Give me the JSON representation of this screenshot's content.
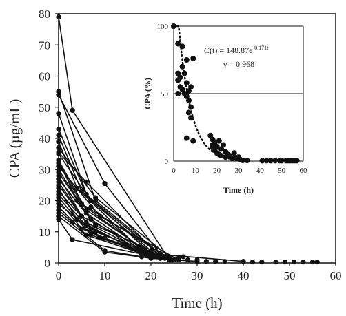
{
  "chart_data": [
    {
      "type": "line",
      "xlabel": "Time (h)",
      "ylabel": "CPA (µg/mL)",
      "xlim": [
        0,
        60
      ],
      "ylim": [
        0,
        80
      ],
      "xticks": [
        "0",
        "10",
        "20",
        "30",
        "40",
        "50",
        "60"
      ],
      "yticks": [
        "0",
        "10",
        "20",
        "30",
        "40",
        "50",
        "60",
        "70",
        "80"
      ],
      "grid": false,
      "series": [
        {
          "x": [
            0,
            3,
            24
          ],
          "y": [
            79,
            49,
            1
          ]
        },
        {
          "x": [
            0,
            10,
            22
          ],
          "y": [
            54,
            25.5,
            3
          ]
        },
        {
          "x": [
            0,
            8,
            22
          ],
          "y": [
            55,
            20,
            3
          ]
        },
        {
          "x": [
            0,
            7,
            20
          ],
          "y": [
            48,
            18,
            2
          ]
        },
        {
          "x": [
            0,
            6,
            20,
            40
          ],
          "y": [
            43,
            22,
            3,
            0.5
          ]
        },
        {
          "x": [
            0,
            5,
            22
          ],
          "y": [
            41,
            23,
            2.5
          ]
        },
        {
          "x": [
            0,
            4,
            18
          ],
          "y": [
            39,
            24,
            4
          ]
        },
        {
          "x": [
            0,
            8,
            24
          ],
          "y": [
            37,
            21,
            2
          ]
        },
        {
          "x": [
            0,
            7,
            22
          ],
          "y": [
            35,
            20,
            1.5
          ]
        },
        {
          "x": [
            0,
            6,
            20
          ],
          "y": [
            33,
            17,
            3
          ]
        },
        {
          "x": [
            0,
            5,
            24
          ],
          "y": [
            32,
            19,
            1.5
          ]
        },
        {
          "x": [
            0,
            9,
            26
          ],
          "y": [
            31,
            15,
            1
          ]
        },
        {
          "x": [
            0,
            6,
            20
          ],
          "y": [
            30,
            16,
            2
          ]
        },
        {
          "x": [
            0,
            7,
            18
          ],
          "y": [
            29,
            14,
            3.5
          ]
        },
        {
          "x": [
            0,
            5,
            22
          ],
          "y": [
            28,
            15,
            2
          ]
        },
        {
          "x": [
            0,
            8,
            24
          ],
          "y": [
            27,
            12,
            1.5
          ]
        },
        {
          "x": [
            0,
            6,
            20
          ],
          "y": [
            26,
            13,
            2.5
          ]
        },
        {
          "x": [
            0,
            7,
            22
          ],
          "y": [
            25,
            11,
            1.5
          ]
        },
        {
          "x": [
            0,
            4,
            18
          ],
          "y": [
            24,
            14,
            3
          ]
        },
        {
          "x": [
            0,
            8,
            24
          ],
          "y": [
            23,
            10,
            1
          ]
        },
        {
          "x": [
            0,
            6,
            20
          ],
          "y": [
            22,
            12,
            2
          ]
        },
        {
          "x": [
            0,
            7,
            22
          ],
          "y": [
            21,
            9,
            1.5
          ]
        },
        {
          "x": [
            0,
            5,
            18
          ],
          "y": [
            20,
            11,
            3
          ]
        },
        {
          "x": [
            0,
            9,
            24
          ],
          "y": [
            19,
            8,
            1
          ]
        },
        {
          "x": [
            0,
            6,
            20
          ],
          "y": [
            18,
            9,
            2
          ]
        },
        {
          "x": [
            0,
            3,
            10,
            22
          ],
          "y": [
            17,
            13,
            8,
            1.5
          ]
        },
        {
          "x": [
            0,
            10,
            18
          ],
          "y": [
            16,
            4,
            2
          ]
        },
        {
          "x": [
            0,
            3,
            24
          ],
          "y": [
            14,
            7.5,
            1
          ]
        },
        {
          "x": [
            0,
            10,
            20,
            30
          ],
          "y": [
            15,
            3.5,
            1.5,
            0.5
          ]
        },
        {
          "x": [
            0,
            6,
            22
          ],
          "y": [
            35.5,
            26,
            2
          ]
        },
        {
          "x": [
            0,
            4,
            20
          ],
          "y": [
            33,
            20,
            2.5
          ]
        }
      ],
      "scatter_points": [
        {
          "x": 0,
          "y": 79
        },
        {
          "x": 3,
          "y": 49
        },
        {
          "x": 10,
          "y": 25.5
        },
        {
          "x": 0,
          "y": 55
        },
        {
          "x": 0,
          "y": 54
        },
        {
          "x": 0,
          "y": 48
        },
        {
          "x": 0,
          "y": 43
        },
        {
          "x": 0,
          "y": 41
        },
        {
          "x": 0,
          "y": 39
        },
        {
          "x": 0,
          "y": 37
        },
        {
          "x": 0,
          "y": 35
        },
        {
          "x": 0,
          "y": 33
        },
        {
          "x": 0,
          "y": 31
        },
        {
          "x": 0,
          "y": 29
        },
        {
          "x": 0,
          "y": 27
        },
        {
          "x": 0,
          "y": 25
        },
        {
          "x": 0,
          "y": 23
        },
        {
          "x": 0,
          "y": 21
        },
        {
          "x": 0,
          "y": 19
        },
        {
          "x": 0,
          "y": 17
        },
        {
          "x": 0,
          "y": 16
        },
        {
          "x": 0,
          "y": 15
        },
        {
          "x": 0,
          "y": 14
        },
        {
          "x": 3,
          "y": 7.5
        },
        {
          "x": 10,
          "y": 3.5
        },
        {
          "x": 18,
          "y": 3
        },
        {
          "x": 19,
          "y": 2.5
        },
        {
          "x": 20,
          "y": 4
        },
        {
          "x": 21,
          "y": 2
        },
        {
          "x": 22,
          "y": 3
        },
        {
          "x": 23,
          "y": 1.5
        },
        {
          "x": 24,
          "y": 2
        },
        {
          "x": 25,
          "y": 1
        },
        {
          "x": 26,
          "y": 1.5
        },
        {
          "x": 27,
          "y": 2
        },
        {
          "x": 28,
          "y": 1
        },
        {
          "x": 30,
          "y": 1
        },
        {
          "x": 32,
          "y": 0.5
        },
        {
          "x": 34,
          "y": 0.5
        },
        {
          "x": 36,
          "y": 0.5
        },
        {
          "x": 40,
          "y": 0.5
        },
        {
          "x": 42,
          "y": 0.3
        },
        {
          "x": 44,
          "y": 0.3
        },
        {
          "x": 47,
          "y": 0.3
        },
        {
          "x": 49,
          "y": 0.3
        },
        {
          "x": 51,
          "y": 0.3
        },
        {
          "x": 53,
          "y": 0.3
        },
        {
          "x": 55,
          "y": 0.3
        },
        {
          "x": 56,
          "y": 0.3
        }
      ]
    },
    {
      "type": "scatter",
      "xlabel": "Time (h)",
      "ylabel": "CPA (%)",
      "xlim": [
        0,
        60
      ],
      "ylim": [
        0,
        100
      ],
      "xticks": [
        "0",
        "10",
        "20",
        "30",
        "40",
        "50",
        "60"
      ],
      "yticks": [
        "0",
        "50",
        "100"
      ],
      "reference_line_y": 50,
      "annotations": [
        "C(t) = 148.87e",
        "-0.171t",
        "γ = 0.968"
      ],
      "fit": {
        "a": 148.87,
        "k": -0.171,
        "x_range": [
          0,
          32
        ]
      },
      "points": [
        {
          "x": 0,
          "y": 100
        },
        {
          "x": 2,
          "y": 87
        },
        {
          "x": 2,
          "y": 65
        },
        {
          "x": 2,
          "y": 60
        },
        {
          "x": 2,
          "y": 50
        },
        {
          "x": 3,
          "y": 62
        },
        {
          "x": 3,
          "y": 55
        },
        {
          "x": 4,
          "y": 85
        },
        {
          "x": 4,
          "y": 70
        },
        {
          "x": 4,
          "y": 53
        },
        {
          "x": 5,
          "y": 65
        },
        {
          "x": 5,
          "y": 50
        },
        {
          "x": 6,
          "y": 75
        },
        {
          "x": 6,
          "y": 58
        },
        {
          "x": 6,
          "y": 48
        },
        {
          "x": 6,
          "y": 17
        },
        {
          "x": 7,
          "y": 52
        },
        {
          "x": 7,
          "y": 45
        },
        {
          "x": 7,
          "y": 36
        },
        {
          "x": 8,
          "y": 55
        },
        {
          "x": 8,
          "y": 40
        },
        {
          "x": 8,
          "y": 32
        },
        {
          "x": 9,
          "y": 76
        },
        {
          "x": 9,
          "y": 15
        },
        {
          "x": 17,
          "y": 19
        },
        {
          "x": 18,
          "y": 16
        },
        {
          "x": 18,
          "y": 12
        },
        {
          "x": 18,
          "y": 10
        },
        {
          "x": 19,
          "y": 14
        },
        {
          "x": 19,
          "y": 8
        },
        {
          "x": 20,
          "y": 6
        },
        {
          "x": 20,
          "y": 11
        },
        {
          "x": 21,
          "y": 15
        },
        {
          "x": 21,
          "y": 5
        },
        {
          "x": 22,
          "y": 9
        },
        {
          "x": 22,
          "y": 4
        },
        {
          "x": 23,
          "y": 12
        },
        {
          "x": 24,
          "y": 7
        },
        {
          "x": 24,
          "y": 3
        },
        {
          "x": 25,
          "y": 5
        },
        {
          "x": 26,
          "y": 4
        },
        {
          "x": 27,
          "y": 2
        },
        {
          "x": 28,
          "y": 6
        },
        {
          "x": 29,
          "y": 2
        },
        {
          "x": 30,
          "y": 3
        },
        {
          "x": 31,
          "y": 1
        },
        {
          "x": 32,
          "y": 0.5
        },
        {
          "x": 34,
          "y": 0.5
        },
        {
          "x": 41,
          "y": 0.3
        },
        {
          "x": 43,
          "y": 0.3
        },
        {
          "x": 45,
          "y": 0.3
        },
        {
          "x": 47,
          "y": 0.3
        },
        {
          "x": 49,
          "y": 0.3
        },
        {
          "x": 50,
          "y": 0.3
        },
        {
          "x": 52,
          "y": 0.3
        },
        {
          "x": 53,
          "y": 0.3
        },
        {
          "x": 54,
          "y": 0.3
        },
        {
          "x": 55,
          "y": 0.3
        },
        {
          "x": 56,
          "y": 0.3
        },
        {
          "x": 57,
          "y": 0.3
        }
      ]
    }
  ],
  "colors": {
    "marker": "#111111",
    "axis": "#111111",
    "background": "#ffffff"
  }
}
